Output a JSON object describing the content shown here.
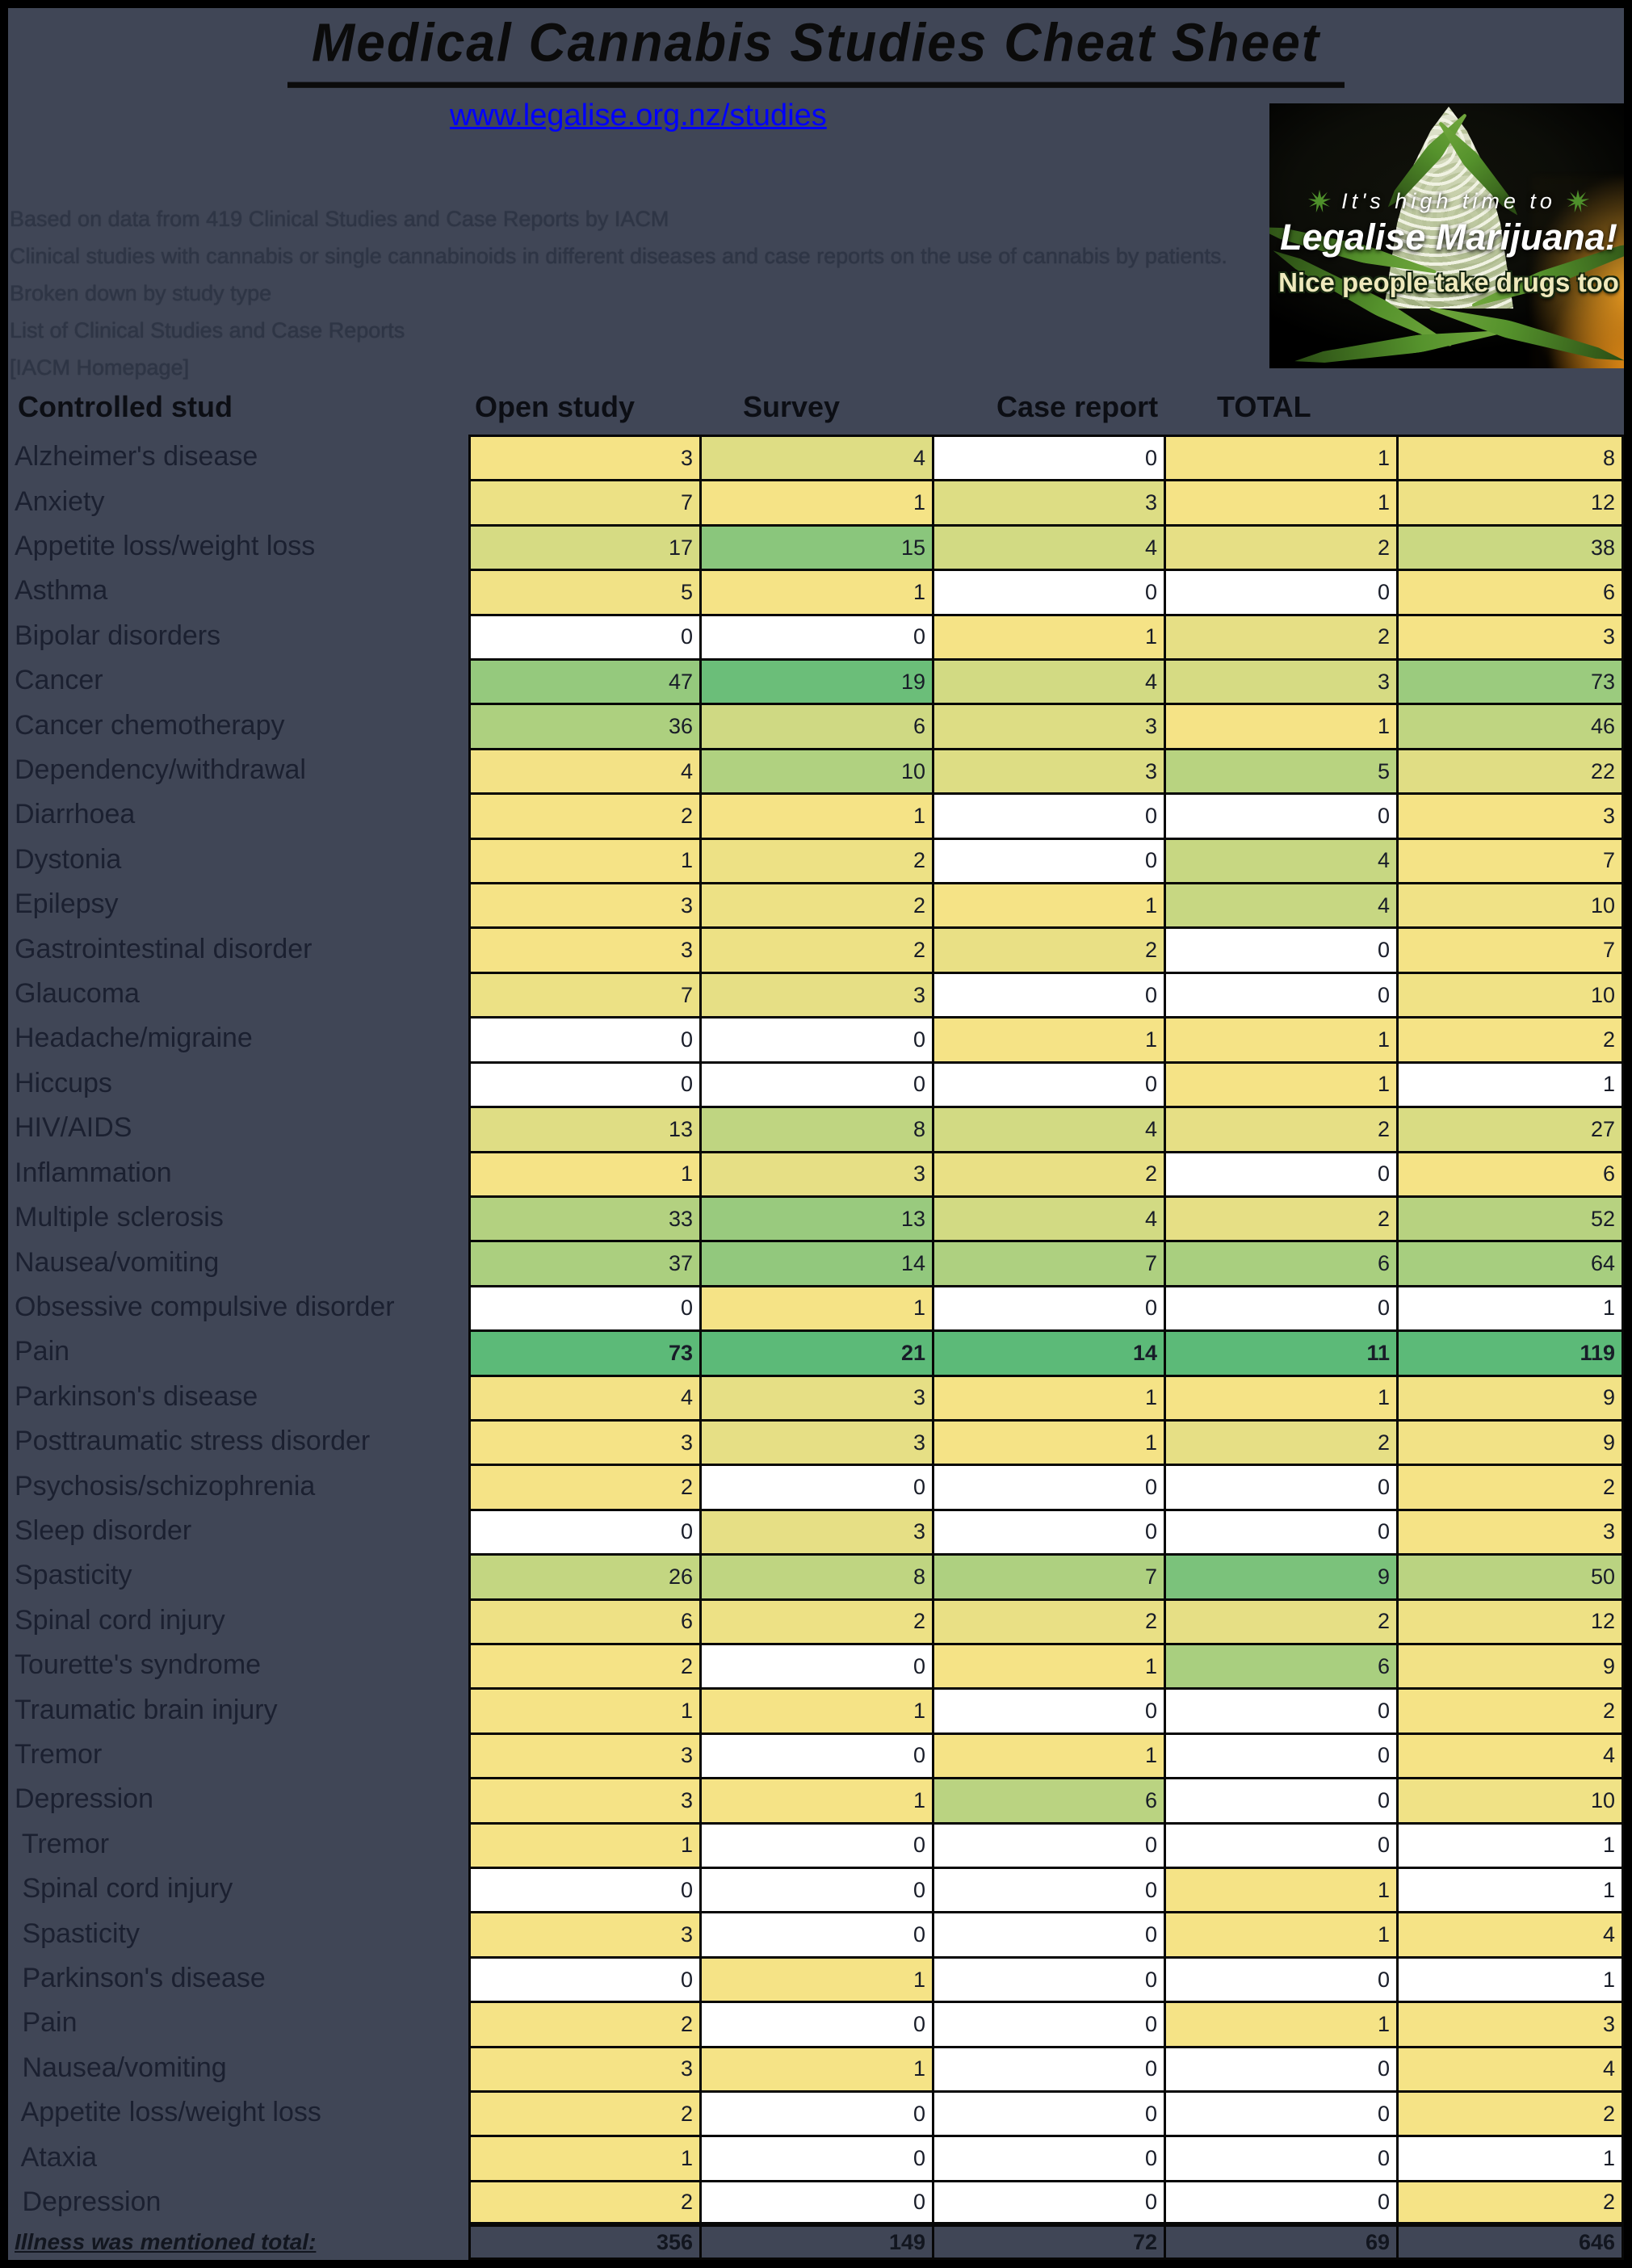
{
  "page": {
    "title": "Medical Cannabis Studies Cheat Sheet",
    "link": "www.legalise.org.nz/studies",
    "background_color": "#404656",
    "link_color": "#0000ff"
  },
  "info": {
    "lines": [
      "Based on data from 419 Clinical Studies and Case Reports by IACM",
      "Clinical studies with cannabis or single cannabinoids in different diseases and case reports on the use of cannabis by patients.",
      "Broken down by study type",
      "List of Clinical Studies and Case Reports",
      "[IACM Homepage]"
    ]
  },
  "promo": {
    "line1": "It's high time to",
    "line2": "Legalise Marijuana!",
    "line3": "Nice people take drugs too",
    "leaf_icon": "cannabis-leaf-icon"
  },
  "chart_data": {
    "type": "table",
    "subtype": "heatmap",
    "legend_position": "none",
    "grid": true,
    "columns": [
      "Controlled stud",
      "Open study",
      "Survey",
      "Case report",
      "TOTAL"
    ],
    "rows": [
      {
        "label": "Alzheimer's disease",
        "values": [
          3,
          4,
          0,
          1,
          8
        ]
      },
      {
        "label": "Anxiety",
        "values": [
          7,
          1,
          3,
          1,
          12
        ]
      },
      {
        "label": "Appetite loss/weight loss",
        "values": [
          17,
          15,
          4,
          2,
          38
        ]
      },
      {
        "label": "Asthma",
        "values": [
          5,
          1,
          0,
          0,
          6
        ]
      },
      {
        "label": "Bipolar disorders",
        "values": [
          0,
          0,
          1,
          2,
          3
        ]
      },
      {
        "label": "Cancer",
        "values": [
          47,
          19,
          4,
          3,
          73
        ]
      },
      {
        "label": "Cancer chemotherapy",
        "values": [
          36,
          6,
          3,
          1,
          46
        ]
      },
      {
        "label": "Dependency/withdrawal",
        "values": [
          4,
          10,
          3,
          5,
          22
        ]
      },
      {
        "label": "Diarrhoea",
        "values": [
          2,
          1,
          0,
          0,
          3
        ]
      },
      {
        "label": "Dystonia",
        "values": [
          1,
          2,
          0,
          4,
          7
        ]
      },
      {
        "label": "Epilepsy",
        "values": [
          3,
          2,
          1,
          4,
          10
        ]
      },
      {
        "label": "Gastrointestinal disorder",
        "values": [
          3,
          2,
          2,
          0,
          7
        ]
      },
      {
        "label": "Glaucoma",
        "values": [
          7,
          3,
          0,
          0,
          10
        ]
      },
      {
        "label": "Headache/migraine",
        "values": [
          0,
          0,
          1,
          1,
          2
        ]
      },
      {
        "label": "Hiccups",
        "values": [
          0,
          0,
          0,
          1,
          1
        ]
      },
      {
        "label": "HIV/AIDS",
        "values": [
          13,
          8,
          4,
          2,
          27
        ]
      },
      {
        "label": "Inflammation",
        "values": [
          1,
          3,
          2,
          0,
          6
        ]
      },
      {
        "label": "Multiple sclerosis",
        "values": [
          33,
          13,
          4,
          2,
          52
        ]
      },
      {
        "label": "Nausea/vomiting",
        "values": [
          37,
          14,
          7,
          6,
          64
        ]
      },
      {
        "label": "Obsessive compulsive disorder",
        "values": [
          0,
          1,
          0,
          0,
          1
        ]
      },
      {
        "label": "Pain",
        "values": [
          73,
          21,
          14,
          11,
          119
        ],
        "bold": true
      },
      {
        "label": "Parkinson's disease",
        "values": [
          4,
          3,
          1,
          1,
          9
        ]
      },
      {
        "label": "Posttraumatic stress disorder",
        "values": [
          3,
          3,
          1,
          2,
          9
        ]
      },
      {
        "label": "Psychosis/schizophrenia",
        "values": [
          2,
          0,
          0,
          0,
          2
        ]
      },
      {
        "label": "Sleep disorder",
        "values": [
          0,
          3,
          0,
          0,
          3
        ]
      },
      {
        "label": "Spasticity",
        "values": [
          26,
          8,
          7,
          9,
          50
        ]
      },
      {
        "label": "Spinal cord injury",
        "values": [
          6,
          2,
          2,
          2,
          12
        ]
      },
      {
        "label": "Tourette's syndrome",
        "values": [
          2,
          0,
          1,
          6,
          9
        ]
      },
      {
        "label": "Traumatic brain injury",
        "values": [
          1,
          1,
          0,
          0,
          2
        ]
      },
      {
        "label": "Tremor",
        "values": [
          3,
          0,
          1,
          0,
          4
        ]
      },
      {
        "label": "Depression",
        "values": [
          3,
          1,
          6,
          0,
          10
        ]
      },
      {
        "label": " Tremor",
        "values": [
          1,
          0,
          0,
          0,
          1
        ],
        "indent": true
      },
      {
        "label": " Spinal cord injury",
        "values": [
          0,
          0,
          0,
          1,
          1
        ],
        "indent": true
      },
      {
        "label": " Spasticity",
        "values": [
          3,
          0,
          0,
          1,
          4
        ],
        "indent": true
      },
      {
        "label": " Parkinson's disease",
        "values": [
          0,
          1,
          0,
          0,
          1
        ],
        "indent": true
      },
      {
        "label": " Pain",
        "values": [
          2,
          0,
          0,
          1,
          3
        ],
        "indent": true
      },
      {
        "label": " Nausea/vomiting",
        "values": [
          3,
          1,
          0,
          0,
          4
        ],
        "indent": true
      },
      {
        "label": " Appetite loss/weight loss",
        "values": [
          2,
          0,
          0,
          0,
          2
        ],
        "indent": true
      },
      {
        "label": " Ataxia",
        "values": [
          1,
          0,
          0,
          0,
          1
        ],
        "indent": true
      },
      {
        "label": " Depression",
        "values": [
          2,
          0,
          0,
          0,
          2
        ],
        "indent": true
      }
    ],
    "totals": {
      "label": "Illness was mentioned total:",
      "values": [
        356,
        149,
        72,
        69,
        646
      ]
    },
    "color_scale": {
      "zero": "#ffffff",
      "low": "#f5e386",
      "high": "#5cba78",
      "note": "per-column white(min)-yellow(median)-green(max)"
    }
  }
}
